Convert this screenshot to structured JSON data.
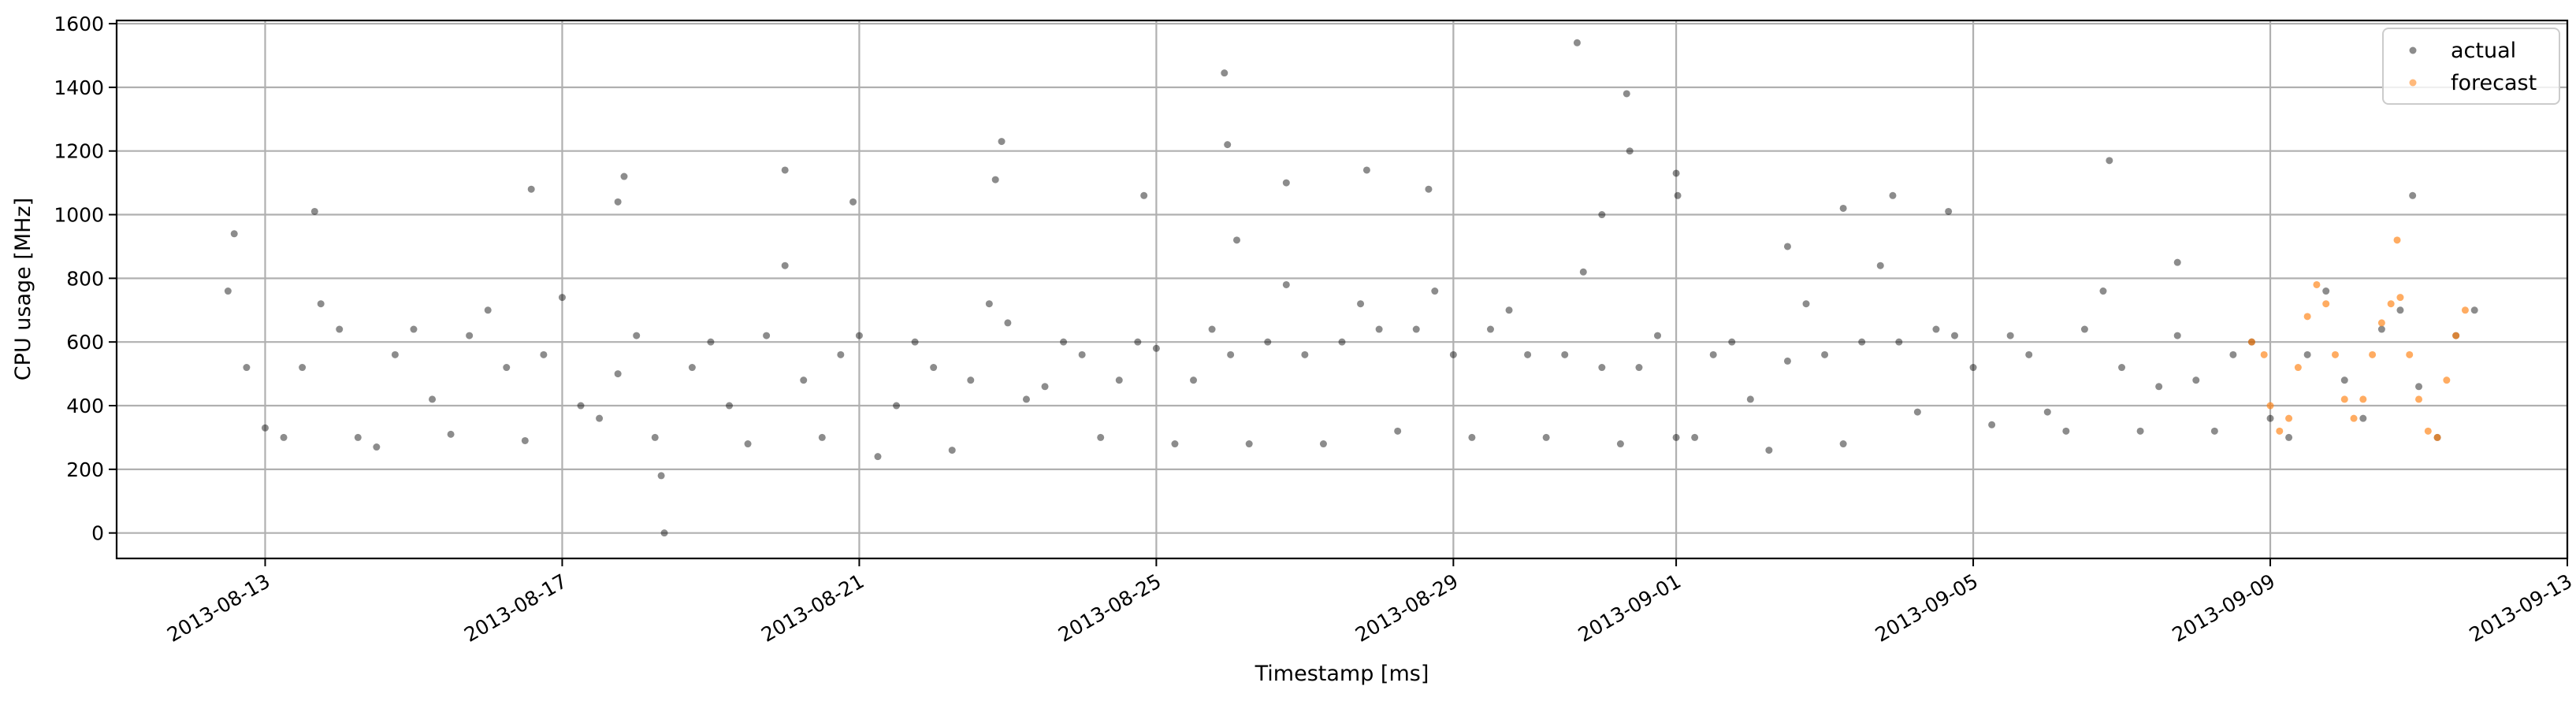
{
  "chart_data": {
    "type": "scatter",
    "xlabel": "Timestamp [ms]",
    "ylabel": "CPU usage [MHz]",
    "xlim": [
      "2013-08-11T00:00",
      "2013-09-13T00:00"
    ],
    "ylim": [
      -80,
      1610
    ],
    "x_tick_labels": [
      "2013-08-13",
      "2013-08-17",
      "2013-08-21",
      "2013-08-25",
      "2013-08-29",
      "2013-09-01",
      "2013-09-05",
      "2013-09-09",
      "2013-09-13"
    ],
    "x_tick_values": [
      "2013-08-13",
      "2013-08-17",
      "2013-08-21",
      "2013-08-25",
      "2013-08-29",
      "2013-09-01",
      "2013-09-05",
      "2013-09-09",
      "2013-09-13"
    ],
    "y_ticks": [
      0,
      200,
      400,
      600,
      800,
      1000,
      1200,
      1400,
      1600
    ],
    "grid": true,
    "legend": {
      "placement": "top-right",
      "entries": [
        {
          "label": "actual",
          "color": "#000000"
        },
        {
          "label": "forecast",
          "color": "#ff7f0e"
        }
      ]
    },
    "series": [
      {
        "name": "actual",
        "color": "#000000",
        "points": [
          [
            "2013-08-12T12:00",
            760
          ],
          [
            "2013-08-12T18:00",
            520
          ],
          [
            "2013-08-13T00:00",
            330
          ],
          [
            "2013-08-13T06:00",
            300
          ],
          [
            "2013-08-13T12:00",
            520
          ],
          [
            "2013-08-13T18:00",
            720
          ],
          [
            "2013-08-14T00:00",
            640
          ],
          [
            "2013-08-14T06:00",
            300
          ],
          [
            "2013-08-14T12:00",
            270
          ],
          [
            "2013-08-14T18:00",
            560
          ],
          [
            "2013-08-15T00:00",
            640
          ],
          [
            "2013-08-15T06:00",
            420
          ],
          [
            "2013-08-15T12:00",
            310
          ],
          [
            "2013-08-15T18:00",
            620
          ],
          [
            "2013-08-16T00:00",
            700
          ],
          [
            "2013-08-16T06:00",
            520
          ],
          [
            "2013-08-16T12:00",
            290
          ],
          [
            "2013-08-16T18:00",
            560
          ],
          [
            "2013-08-17T00:00",
            740
          ],
          [
            "2013-08-17T06:00",
            400
          ],
          [
            "2013-08-17T12:00",
            360
          ],
          [
            "2013-08-17T18:00",
            500
          ],
          [
            "2013-08-18T00:00",
            620
          ],
          [
            "2013-08-18T06:00",
            300
          ],
          [
            "2013-08-18T09:00",
            0
          ],
          [
            "2013-08-18T18:00",
            520
          ],
          [
            "2013-08-19T00:00",
            600
          ],
          [
            "2013-08-19T06:00",
            400
          ],
          [
            "2013-08-19T12:00",
            280
          ],
          [
            "2013-08-19T18:00",
            620
          ],
          [
            "2013-08-20T00:00",
            840
          ],
          [
            "2013-08-20T06:00",
            480
          ],
          [
            "2013-08-20T12:00",
            300
          ],
          [
            "2013-08-20T18:00",
            560
          ],
          [
            "2013-08-21T00:00",
            620
          ],
          [
            "2013-08-21T06:00",
            240
          ],
          [
            "2013-08-21T12:00",
            400
          ],
          [
            "2013-08-21T18:00",
            600
          ],
          [
            "2013-08-22T00:00",
            520
          ],
          [
            "2013-08-22T06:00",
            260
          ],
          [
            "2013-08-22T12:00",
            480
          ],
          [
            "2013-08-22T18:00",
            720
          ],
          [
            "2013-08-23T00:00",
            660
          ],
          [
            "2013-08-23T06:00",
            420
          ],
          [
            "2013-08-23T12:00",
            460
          ],
          [
            "2013-08-23T18:00",
            600
          ],
          [
            "2013-08-24T00:00",
            560
          ],
          [
            "2013-08-24T06:00",
            300
          ],
          [
            "2013-08-24T12:00",
            480
          ],
          [
            "2013-08-24T18:00",
            600
          ],
          [
            "2013-08-25T00:00",
            580
          ],
          [
            "2013-08-25T06:00",
            280
          ],
          [
            "2013-08-25T12:00",
            480
          ],
          [
            "2013-08-25T18:00",
            640
          ],
          [
            "2013-08-26T00:00",
            560
          ],
          [
            "2013-08-26T06:00",
            280
          ],
          [
            "2013-08-26T12:00",
            600
          ],
          [
            "2013-08-26T18:00",
            780
          ],
          [
            "2013-08-27T00:00",
            560
          ],
          [
            "2013-08-27T06:00",
            280
          ],
          [
            "2013-08-27T12:00",
            600
          ],
          [
            "2013-08-27T18:00",
            720
          ],
          [
            "2013-08-28T00:00",
            640
          ],
          [
            "2013-08-28T06:00",
            320
          ],
          [
            "2013-08-28T12:00",
            640
          ],
          [
            "2013-08-28T18:00",
            760
          ],
          [
            "2013-08-29T00:00",
            560
          ],
          [
            "2013-08-29T06:00",
            300
          ],
          [
            "2013-08-29T12:00",
            640
          ],
          [
            "2013-08-29T18:00",
            700
          ],
          [
            "2013-08-30T00:00",
            560
          ],
          [
            "2013-08-30T06:00",
            300
          ],
          [
            "2013-08-30T12:00",
            560
          ],
          [
            "2013-08-30T18:00",
            820
          ],
          [
            "2013-08-31T00:00",
            520
          ],
          [
            "2013-08-31T06:00",
            280
          ],
          [
            "2013-08-31T12:00",
            520
          ],
          [
            "2013-08-31T18:00",
            620
          ],
          [
            "2013-09-01T00:00",
            300
          ],
          [
            "2013-09-01T06:00",
            300
          ],
          [
            "2013-09-01T12:00",
            560
          ],
          [
            "2013-09-01T18:00",
            600
          ],
          [
            "2013-09-02T00:00",
            420
          ],
          [
            "2013-09-02T06:00",
            260
          ],
          [
            "2013-09-02T12:00",
            540
          ],
          [
            "2013-09-02T18:00",
            720
          ],
          [
            "2013-09-03T00:00",
            560
          ],
          [
            "2013-09-03T06:00",
            280
          ],
          [
            "2013-09-03T12:00",
            600
          ],
          [
            "2013-09-03T18:00",
            840
          ],
          [
            "2013-09-04T00:00",
            600
          ],
          [
            "2013-09-04T06:00",
            380
          ],
          [
            "2013-09-04T12:00",
            640
          ],
          [
            "2013-09-04T18:00",
            620
          ],
          [
            "2013-09-05T00:00",
            520
          ],
          [
            "2013-09-05T06:00",
            340
          ],
          [
            "2013-09-05T12:00",
            620
          ],
          [
            "2013-09-05T18:00",
            560
          ],
          [
            "2013-09-06T00:00",
            380
          ],
          [
            "2013-09-06T06:00",
            320
          ],
          [
            "2013-09-06T12:00",
            640
          ],
          [
            "2013-09-06T18:00",
            760
          ],
          [
            "2013-09-07T00:00",
            520
          ],
          [
            "2013-09-07T06:00",
            320
          ],
          [
            "2013-09-07T12:00",
            460
          ],
          [
            "2013-09-07T18:00",
            620
          ],
          [
            "2013-09-08T00:00",
            480
          ],
          [
            "2013-09-08T06:00",
            320
          ],
          [
            "2013-09-08T12:00",
            560
          ],
          [
            "2013-09-08T18:00",
            600
          ],
          [
            "2013-09-09T00:00",
            360
          ],
          [
            "2013-09-09T06:00",
            300
          ],
          [
            "2013-09-09T12:00",
            560
          ],
          [
            "2013-09-09T18:00",
            760
          ],
          [
            "2013-09-10T00:00",
            480
          ],
          [
            "2013-09-10T06:00",
            360
          ],
          [
            "2013-09-10T12:00",
            640
          ],
          [
            "2013-09-10T18:00",
            700
          ],
          [
            "2013-09-11T00:00",
            460
          ],
          [
            "2013-09-11T06:00",
            300
          ],
          [
            "2013-09-11T12:00",
            620
          ],
          [
            "2013-09-11T18:00",
            700
          ],
          [
            "2013-08-12T14:00",
            940
          ],
          [
            "2013-08-13T16:00",
            1010
          ],
          [
            "2013-08-16T14:00",
            1080
          ],
          [
            "2013-08-17T20:00",
            1120
          ],
          [
            "2013-08-17T18:00",
            1040
          ],
          [
            "2013-08-18T08:00",
            180
          ],
          [
            "2013-08-20T00:00",
            1140
          ],
          [
            "2013-08-20T22:00",
            1040
          ],
          [
            "2013-08-22T22:00",
            1230
          ],
          [
            "2013-08-22T20:00",
            1110
          ],
          [
            "2013-08-24T20:00",
            1060
          ],
          [
            "2013-08-25T22:00",
            1445
          ],
          [
            "2013-08-25T23:00",
            1220
          ],
          [
            "2013-08-26T02:00",
            920
          ],
          [
            "2013-08-26T18:00",
            1100
          ],
          [
            "2013-08-27T20:00",
            1140
          ],
          [
            "2013-08-28T16:00",
            1080
          ],
          [
            "2013-08-30T16:00",
            1540
          ],
          [
            "2013-08-31T08:00",
            1380
          ],
          [
            "2013-08-31T09:00",
            1200
          ],
          [
            "2013-08-31T00:00",
            1000
          ],
          [
            "2013-09-01T00:00",
            1130
          ],
          [
            "2013-09-01T00:30",
            1060
          ],
          [
            "2013-09-02T12:00",
            900
          ],
          [
            "2013-09-03T06:00",
            1020
          ],
          [
            "2013-09-03T22:00",
            1060
          ],
          [
            "2013-09-04T16:00",
            1010
          ],
          [
            "2013-09-06T20:00",
            1170
          ],
          [
            "2013-09-07T18:00",
            850
          ],
          [
            "2013-09-10T22:00",
            1060
          ]
        ]
      },
      {
        "name": "forecast",
        "color": "#ff7f0e",
        "points": [
          [
            "2013-09-08T18:00",
            600
          ],
          [
            "2013-09-08T22:00",
            560
          ],
          [
            "2013-09-09T00:00",
            400
          ],
          [
            "2013-09-09T03:00",
            320
          ],
          [
            "2013-09-09T06:00",
            360
          ],
          [
            "2013-09-09T09:00",
            520
          ],
          [
            "2013-09-09T12:00",
            680
          ],
          [
            "2013-09-09T15:00",
            780
          ],
          [
            "2013-09-09T18:00",
            720
          ],
          [
            "2013-09-09T21:00",
            560
          ],
          [
            "2013-09-10T00:00",
            420
          ],
          [
            "2013-09-10T03:00",
            360
          ],
          [
            "2013-09-10T06:00",
            420
          ],
          [
            "2013-09-10T09:00",
            560
          ],
          [
            "2013-09-10T12:00",
            660
          ],
          [
            "2013-09-10T15:00",
            720
          ],
          [
            "2013-09-10T17:00",
            920
          ],
          [
            "2013-09-10T18:00",
            740
          ],
          [
            "2013-09-10T21:00",
            560
          ],
          [
            "2013-09-11T00:00",
            420
          ],
          [
            "2013-09-11T03:00",
            320
          ],
          [
            "2013-09-11T06:00",
            300
          ],
          [
            "2013-09-11T09:00",
            480
          ],
          [
            "2013-09-11T12:00",
            620
          ],
          [
            "2013-09-11T15:00",
            700
          ]
        ]
      }
    ]
  }
}
